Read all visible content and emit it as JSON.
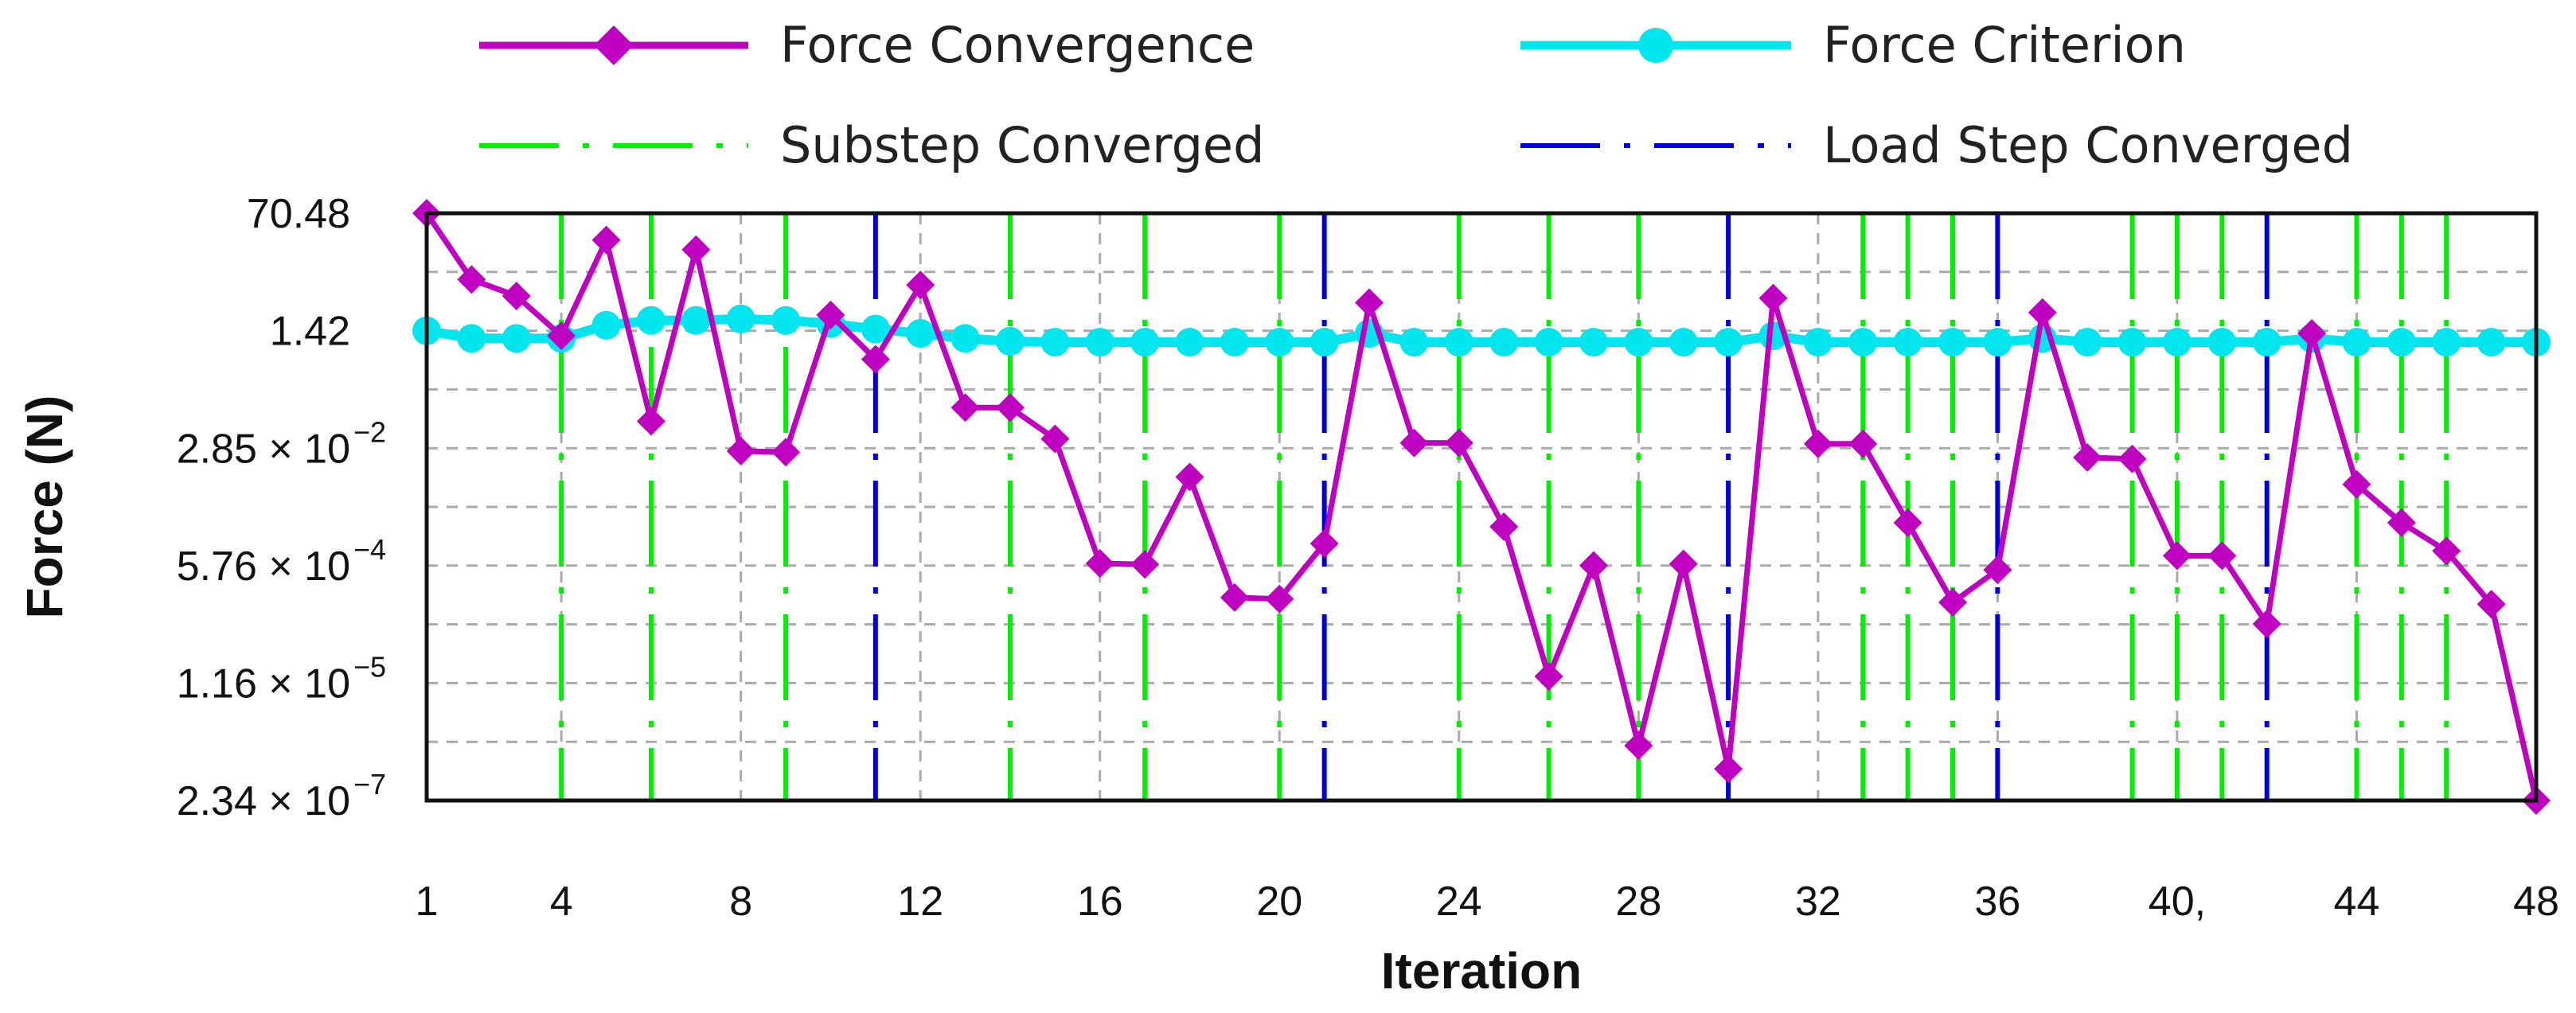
{
  "chart_data": {
    "type": "line",
    "xlabel": "Iteration",
    "ylabel": "Force (N)",
    "y_scale": "log",
    "xlim": [
      1,
      48
    ],
    "ylim": [
      2.34e-07,
      70.48
    ],
    "x_ticks": [
      1,
      4,
      8,
      12,
      16,
      20,
      24,
      28,
      32,
      36,
      40,
      44,
      48
    ],
    "x_tick_labels": [
      "1",
      "4",
      "8",
      "12",
      "16",
      "20",
      "24",
      "28",
      "32",
      "36",
      "40,",
      "44",
      "48"
    ],
    "y_ticks": [
      {
        "value": 70.48,
        "mantissa": "70.48",
        "exp": ""
      },
      {
        "value": 1.42,
        "mantissa": "1.42",
        "exp": ""
      },
      {
        "value": 0.0285,
        "mantissa": "2.85 × 10",
        "exp": "−2"
      },
      {
        "value": 0.000576,
        "mantissa": "5.76 × 10",
        "exp": "−4"
      },
      {
        "value": 1.16e-05,
        "mantissa": "1.16 × 10",
        "exp": "−5"
      },
      {
        "value": 2.34e-07,
        "mantissa": "2.34 × 10",
        "exp": "−7"
      }
    ],
    "grid": true,
    "legend_position": "top",
    "series": [
      {
        "name": "Force Convergence",
        "color": "#c000c0",
        "marker": "diamond",
        "x": [
          1,
          2,
          3,
          4,
          5,
          6,
          7,
          8,
          9,
          10,
          11,
          12,
          13,
          14,
          15,
          16,
          17,
          18,
          19,
          20,
          21,
          22,
          23,
          24,
          25,
          26,
          27,
          28,
          29,
          30,
          31,
          32,
          33,
          34,
          35,
          36,
          37,
          38,
          39,
          40,
          41,
          42,
          43,
          44,
          45,
          46,
          47,
          48
        ],
        "y": [
          70.48,
          7.8,
          4.5,
          1.2,
          29,
          0.07,
          21,
          0.026,
          0.025,
          2.4,
          0.55,
          6.5,
          0.11,
          0.11,
          0.039,
          0.00062,
          0.0006,
          0.011,
          0.0002,
          0.00019,
          0.0012,
          3.6,
          0.034,
          0.034,
          0.0021,
          1.45e-05,
          0.00058,
          1.45e-06,
          0.00061,
          6.7e-07,
          4.2,
          0.033,
          0.033,
          0.0024,
          0.00017,
          0.0005,
          2.6,
          0.021,
          0.02,
          0.0008,
          0.0008,
          8.3e-05,
          1.3,
          0.0086,
          0.0024,
          0.00094,
          0.00016,
          2.34e-07
        ]
      },
      {
        "name": "Force Criterion",
        "color": "#00e5ee",
        "marker": "circle",
        "x": [
          1,
          2,
          3,
          4,
          5,
          6,
          7,
          8,
          9,
          10,
          11,
          12,
          13,
          14,
          15,
          16,
          17,
          18,
          19,
          20,
          21,
          22,
          23,
          24,
          25,
          26,
          27,
          28,
          29,
          30,
          31,
          32,
          33,
          34,
          35,
          36,
          37,
          38,
          39,
          40,
          41,
          42,
          43,
          44,
          45,
          46,
          47,
          48
        ],
        "y": [
          1.42,
          1.1,
          1.1,
          1.1,
          1.7,
          2.0,
          2.0,
          2.1,
          2.0,
          1.8,
          1.5,
          1.3,
          1.1,
          1.0,
          0.97,
          0.97,
          0.97,
          0.97,
          0.97,
          0.97,
          0.97,
          1.3,
          0.97,
          0.97,
          0.97,
          0.97,
          0.97,
          0.97,
          0.97,
          0.97,
          1.2,
          0.97,
          0.97,
          0.97,
          0.97,
          0.97,
          1.1,
          0.97,
          0.97,
          0.97,
          0.97,
          0.97,
          1.1,
          0.97,
          0.97,
          0.97,
          0.97,
          0.97
        ]
      }
    ],
    "vertical_markers": [
      {
        "name": "Substep Converged",
        "color": "#00ee00",
        "dash": "long-dash-dot",
        "x": [
          4,
          6,
          9,
          14,
          17,
          20,
          24,
          26,
          28,
          33,
          34,
          35,
          39,
          40,
          41,
          44,
          45,
          46
        ]
      },
      {
        "name": "Load Step Converged",
        "color": "#0000dd",
        "dash": "long-dash-dot",
        "x": [
          11,
          21,
          30,
          36,
          42
        ]
      }
    ]
  }
}
